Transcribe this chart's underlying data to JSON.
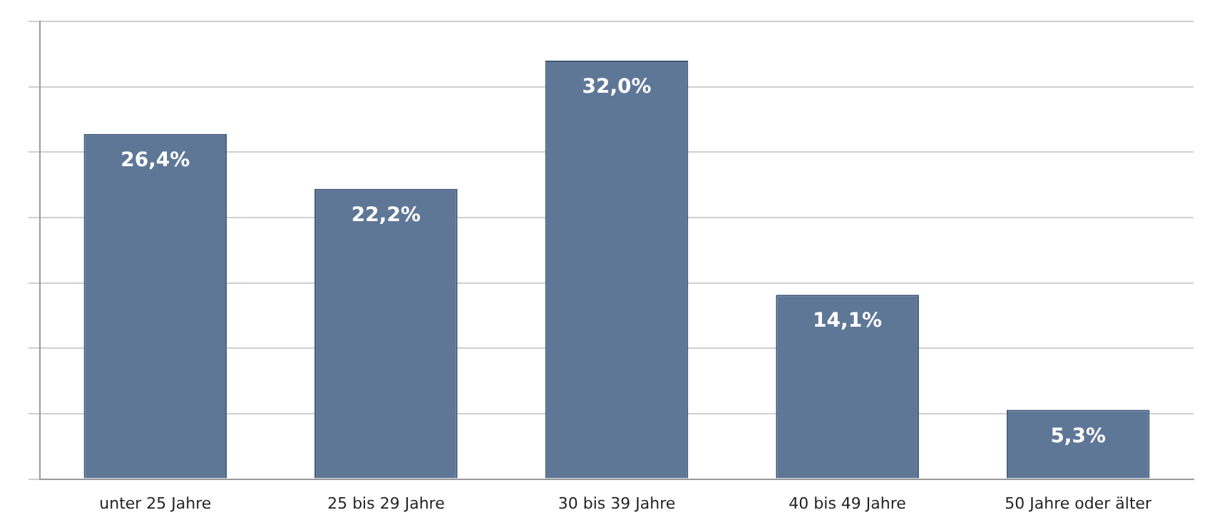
{
  "chart_data": {
    "type": "bar",
    "categories": [
      "unter 25 Jahre",
      "25 bis 29 Jahre",
      "30 bis 39 Jahre",
      "40 bis 49 Jahre",
      "50 Jahre oder älter"
    ],
    "values": [
      26.4,
      22.2,
      32.0,
      14.1,
      5.3
    ],
    "value_labels": [
      "26,4%",
      "22,2%",
      "32,0%",
      "14,1%",
      "5,3%"
    ],
    "color": "#5f7797",
    "ylim": [
      0,
      35
    ],
    "yticks": [
      {
        "value": 0,
        "label": null
      },
      {
        "value": 5,
        "label": null
      },
      {
        "value": 10,
        "label": null
      },
      {
        "value": 15,
        "label": null
      },
      {
        "value": 20,
        "label": null
      },
      {
        "value": 25,
        "label": null
      },
      {
        "value": 30,
        "label": null
      },
      {
        "value": 35,
        "label": null
      }
    ],
    "grid": "y",
    "tick_labels": "x",
    "legend": false
  }
}
